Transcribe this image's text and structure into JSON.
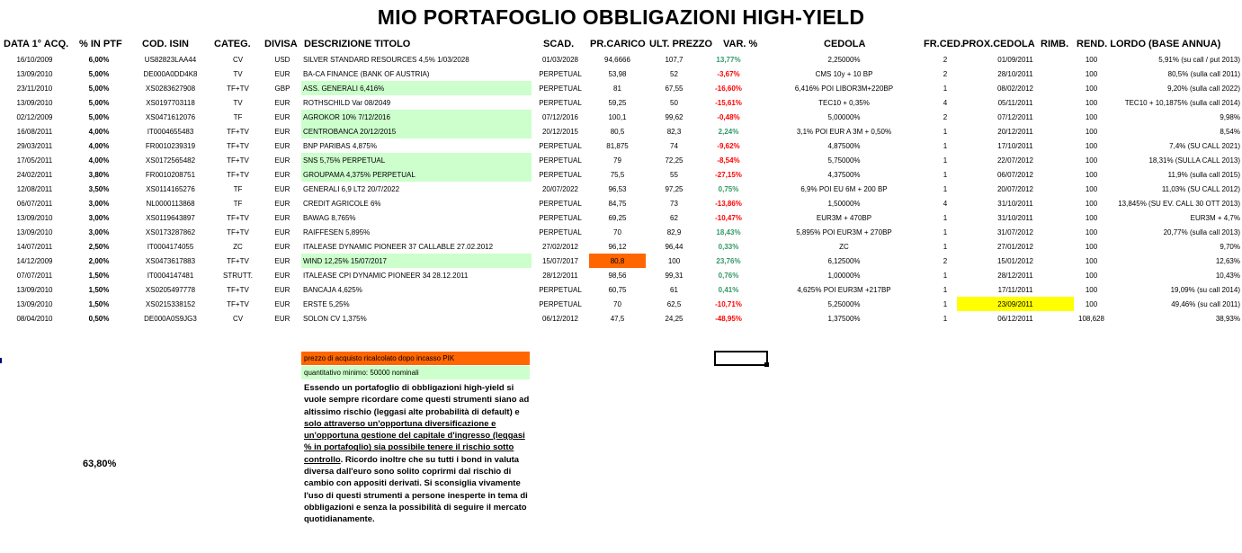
{
  "title": "MIO PORTAFOGLIO OBBLIGAZIONI HIGH-YIELD",
  "headers": [
    "DATA 1° ACQ.",
    "% IN PTF",
    "COD. ISIN",
    "CATEG.",
    "DIVISA",
    "DESCRIZIONE TITOLO",
    "SCAD.",
    "PR.CARICO",
    "ULT. PREZZO",
    "VAR. %",
    "CEDOLA",
    "FR.CED.",
    "PROX.CEDOLA",
    "RIMB.",
    "REND. LORDO (BASE ANNUA)"
  ],
  "rows": [
    {
      "data": "16/10/2009",
      "pct": "6,00%",
      "isin": "US82823LAA44",
      "categ": "CV",
      "divisa": "USD",
      "descr": "SILVER STANDARD RESOURCES 4,5% 1/03/2028",
      "scad": "01/03/2028",
      "carico": "94,6666",
      "prezzo": "107,7",
      "var": "13,77%",
      "cedola": "2,25000%",
      "fr": "2",
      "prox": "01/09/2011",
      "rimb": "100",
      "rend": "5,91% (su call / put 2013)"
    },
    {
      "data": "13/09/2010",
      "pct": "5,00%",
      "isin": "DE000A0DD4K8",
      "categ": "TV",
      "divisa": "EUR",
      "descr": "BA-CA FINANCE (BANK OF AUSTRIA)",
      "scad": "PERPETUAL",
      "carico": "53,98",
      "prezzo": "52",
      "var": "-3,67%",
      "cedola": "CMS 10y + 10 BP",
      "fr": "2",
      "prox": "28/10/2011",
      "rimb": "100",
      "rend": "80,5% (sulla call 2011)"
    },
    {
      "data": "23/11/2010",
      "pct": "5,00%",
      "isin": "XS0283627908",
      "categ": "TF+TV",
      "divisa": "GBP",
      "descr": "ASS. GENERALI 6,416%",
      "scad": "PERPETUAL",
      "carico": "81",
      "prezzo": "67,55",
      "var": "-16,60%",
      "cedola": "6,416% POI LIBOR3M+220BP",
      "fr": "1",
      "prox": "08/02/2012",
      "rimb": "100",
      "rend": "9,20% (sulla call 2022)"
    },
    {
      "data": "13/09/2010",
      "pct": "5,00%",
      "isin": "XS0197703118",
      "categ": "TV",
      "divisa": "EUR",
      "descr": "ROTHSCHILD Var 08/2049",
      "scad": "PERPETUAL",
      "carico": "59,25",
      "prezzo": "50",
      "var": "-15,61%",
      "cedola": "TEC10 + 0,35%",
      "fr": "4",
      "prox": "05/11/2011",
      "rimb": "100",
      "rend": "TEC10 + 10,1875% (sulla call 2014)"
    },
    {
      "data": "02/12/2009",
      "pct": "5,00%",
      "isin": "XS0471612076",
      "categ": "TF",
      "divisa": "EUR",
      "descr": "AGROKOR 10% 7/12/2016",
      "scad": "07/12/2016",
      "carico": "100,1",
      "prezzo": "99,62",
      "var": "-0,48%",
      "cedola": "5,00000%",
      "fr": "2",
      "prox": "07/12/2011",
      "rimb": "100",
      "rend": "9,98%"
    },
    {
      "data": "16/08/2011",
      "pct": "4,00%",
      "isin": "IT0004655483",
      "categ": "TF+TV",
      "divisa": "EUR",
      "descr": "CENTROBANCA 20/12/2015",
      "scad": "20/12/2015",
      "carico": "80,5",
      "prezzo": "82,3",
      "var": "2,24%",
      "cedola": "3,1% POI EUR A 3M + 0,50%",
      "fr": "1",
      "prox": "20/12/2011",
      "rimb": "100",
      "rend": "8,54%"
    },
    {
      "data": "29/03/2011",
      "pct": "4,00%",
      "isin": "FR0010239319",
      "categ": "TF+TV",
      "divisa": "EUR",
      "descr": "BNP PARIBAS 4,875%",
      "scad": "PERPETUAL",
      "carico": "81,875",
      "prezzo": "74",
      "var": "-9,62%",
      "cedola": "4,87500%",
      "fr": "1",
      "prox": "17/10/2011",
      "rimb": "100",
      "rend": "7,4% (SU CALL 2021)"
    },
    {
      "data": "17/05/2011",
      "pct": "4,00%",
      "isin": "XS0172565482",
      "categ": "TF+TV",
      "divisa": "EUR",
      "descr": "SNS 5,75% PERPETUAL",
      "scad": "PERPETUAL",
      "carico": "79",
      "prezzo": "72,25",
      "var": "-8,54%",
      "cedola": "5,75000%",
      "fr": "1",
      "prox": "22/07/2012",
      "rimb": "100",
      "rend": "18,31% (SULLA CALL 2013)"
    },
    {
      "data": "24/02/2011",
      "pct": "3,80%",
      "isin": "FR0010208751",
      "categ": "TF+TV",
      "divisa": "EUR",
      "descr": "GROUPAMA 4,375% PERPETUAL",
      "scad": "PERPETUAL",
      "carico": "75,5",
      "prezzo": "55",
      "var": "-27,15%",
      "cedola": "4,37500%",
      "fr": "1",
      "prox": "06/07/2012",
      "rimb": "100",
      "rend": "11,9% (sulla call 2015)"
    },
    {
      "data": "12/08/2011",
      "pct": "3,50%",
      "isin": "XS0114165276",
      "categ": "TF",
      "divisa": "EUR",
      "descr": "GENERALI 6,9 LT2 20/7/2022",
      "scad": "20/07/2022",
      "carico": "96,53",
      "prezzo": "97,25",
      "var": "0,75%",
      "cedola": "6,9% POI EU 6M + 200 BP",
      "fr": "1",
      "prox": "20/07/2012",
      "rimb": "100",
      "rend": "11,03% (SU CALL 2012)"
    },
    {
      "data": "06/07/2011",
      "pct": "3,00%",
      "isin": "NL0000113868",
      "categ": "TF",
      "divisa": "EUR",
      "descr": "CREDIT AGRICOLE 6%",
      "scad": "PERPETUAL",
      "carico": "84,75",
      "prezzo": "73",
      "var": "-13,86%",
      "cedola": "1,50000%",
      "fr": "4",
      "prox": "31/10/2011",
      "rimb": "100",
      "rend": "13,845% (SU EV. CALL 30 OTT 2013)"
    },
    {
      "data": "13/09/2010",
      "pct": "3,00%",
      "isin": "XS0119643897",
      "categ": "TF+TV",
      "divisa": "EUR",
      "descr": "BAWAG 8,765%",
      "scad": "PERPETUAL",
      "carico": "69,25",
      "prezzo": "62",
      "var": "-10,47%",
      "cedola": "EUR3M + 470BP",
      "fr": "1",
      "prox": "31/10/2011",
      "rimb": "100",
      "rend": "EUR3M + 4,7%"
    },
    {
      "data": "13/09/2010",
      "pct": "3,00%",
      "isin": "XS0173287862",
      "categ": "TF+TV",
      "divisa": "EUR",
      "descr": "RAIFFESEN 5,895%",
      "scad": "PERPETUAL",
      "carico": "70",
      "prezzo": "82,9",
      "var": "18,43%",
      "cedola": "5,895% POI EUR3M + 270BP",
      "fr": "1",
      "prox": "31/07/2012",
      "rimb": "100",
      "rend": "20,77% (sulla call 2013)"
    },
    {
      "data": "14/07/2011",
      "pct": "2,50%",
      "isin": "IT0004174055",
      "categ": "ZC",
      "divisa": "EUR",
      "descr": "ITALEASE DYNAMIC PIONEER 37 CALLABLE 27.02.2012",
      "scad": "27/02/2012",
      "carico": "96,12",
      "prezzo": "96,44",
      "var": "0,33%",
      "cedola": "ZC",
      "fr": "1",
      "prox": "27/01/2012",
      "rimb": "100",
      "rend": "9,70%"
    },
    {
      "data": "14/12/2009",
      "pct": "2,00%",
      "isin": "XS0473617883",
      "categ": "TF+TV",
      "divisa": "EUR",
      "descr": "WIND 12,25% 15/07/2017",
      "scad": "15/07/2017",
      "carico": "80,8",
      "prezzo": "100",
      "var": "23,76%",
      "cedola": "6,12500%",
      "fr": "2",
      "prox": "15/01/2012",
      "rimb": "100",
      "rend": "12,63%"
    },
    {
      "data": "07/07/2011",
      "pct": "1,50%",
      "isin": "IT0004147481",
      "categ": "STRUTT.",
      "divisa": "EUR",
      "descr": "ITALEASE CPI DYNAMIC PIONEER 34 28.12.2011",
      "scad": "28/12/2011",
      "carico": "98,56",
      "prezzo": "99,31",
      "var": "0,76%",
      "cedola": "1,00000%",
      "fr": "1",
      "prox": "28/12/2011",
      "rimb": "100",
      "rend": "10,43%"
    },
    {
      "data": "13/09/2010",
      "pct": "1,50%",
      "isin": "XS0205497778",
      "categ": "TF+TV",
      "divisa": "EUR",
      "descr": "BANCAJA 4,625%",
      "scad": "PERPETUAL",
      "carico": "60,75",
      "prezzo": "61",
      "var": "0,41%",
      "cedola": "4,625% POI EUR3M +217BP",
      "fr": "1",
      "prox": "17/11/2011",
      "rimb": "100",
      "rend": "19,09% (su call 2014)"
    },
    {
      "data": "13/09/2010",
      "pct": "1,50%",
      "isin": "XS0215338152",
      "categ": "TF+TV",
      "divisa": "EUR",
      "descr": "ERSTE 5,25%",
      "scad": "PERPETUAL",
      "carico": "70",
      "prezzo": "62,5",
      "var": "-10,71%",
      "cedola": "5,25000%",
      "fr": "1",
      "prox": "23/09/2011",
      "rimb": "100",
      "rend": "49,46% (su call 2011)"
    },
    {
      "data": "08/04/2010",
      "pct": "0,50%",
      "isin": "DE000A0S9JG3",
      "categ": "CV",
      "divisa": "EUR",
      "descr": "SOLON CV 1,375%",
      "scad": "06/12/2012",
      "carico": "47,5",
      "prezzo": "24,25",
      "var": "-48,95%",
      "cedola": "1,37500%",
      "fr": "1",
      "prox": "06/12/2011",
      "rimb": "108,628",
      "rend": "38,93%"
    }
  ],
  "legend": {
    "orange_note": "prezzo di acquisto ricalcolato dopo incasso PIK",
    "green_note": "quantitativo minimo: 50000 nominali"
  },
  "paragraph": {
    "part1": "Essendo un portafoglio di obbligazioni high-yield si vuole sempre ricordare come questi strumenti siano ad altissimo rischio (leggasi alte probabilità di default) e ",
    "underlined": "solo attraverso un'opportuna diversificazione e un'opportuna gestione del capitale d'ingresso (leggasi % in portafoglio) sia possibile tenere il rischio sotto controllo",
    "part2": ". Ricordo inoltre che su tutti i bond in valuta diversa dall'euro sono solito coprirmi dal rischio di cambio con appositi derivati. Si sconsiglia vivamente l'uso di questi strumenti a persone inesperte in tema di obbligazioni e senza la possibilità di seguire il mercato quotidianamente."
  },
  "total_pct": "63,80%",
  "colors": {
    "highlight_green": "#ccffcc",
    "highlight_orange": "#ff6600",
    "highlight_yellow": "#ffff00",
    "positive": "#339966",
    "negative": "#ff0000"
  }
}
